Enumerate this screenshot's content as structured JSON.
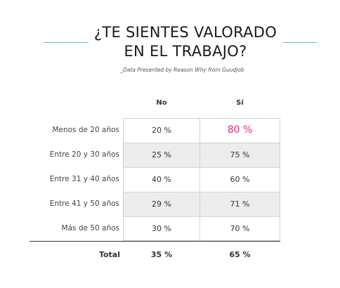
{
  "title_line1": "¿TE SIENTES VALORADO",
  "title_line2": "EN EL TRABAJO?",
  "subtitle": "_Data Presented by Reason Why from Guudjob",
  "colors": {
    "accent_line": "#4db8e0",
    "highlight": "#e6258a",
    "row_shade": "#ececec"
  },
  "chart_data": {
    "type": "table",
    "columns": [
      "No",
      "Sí"
    ],
    "rows": [
      {
        "label": "Menos de 20 años",
        "no": "20 %",
        "si": "80 %",
        "no_value": 20,
        "si_value": 80
      },
      {
        "label": "Entre 20 y 30 años",
        "no": "25 %",
        "si": "75 %",
        "no_value": 25,
        "si_value": 75
      },
      {
        "label": "Entre 31 y 40 años",
        "no": "40 %",
        "si": "60 %",
        "no_value": 40,
        "si_value": 60
      },
      {
        "label": "Entre 41 y 50 años",
        "no": "29 %",
        "si": "71 %",
        "no_value": 29,
        "si_value": 71
      },
      {
        "label": "Más de 50 años",
        "no": "30 %",
        "si": "70 %",
        "no_value": 30,
        "si_value": 70
      }
    ],
    "total": {
      "label": "Total",
      "no": "35 %",
      "si": "65 %",
      "no_value": 35,
      "si_value": 65
    }
  }
}
